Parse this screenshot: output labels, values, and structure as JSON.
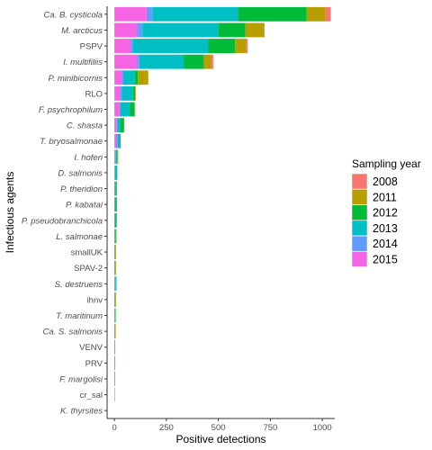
{
  "chart_data": {
    "type": "bar",
    "orientation": "horizontal",
    "stacked": true,
    "title": "",
    "xlabel": "Positive detections",
    "ylabel": "Infectious agents",
    "xlim": [
      -35,
      1060
    ],
    "xticks": [
      0,
      250,
      500,
      750,
      1000
    ],
    "xtick_labels": [
      "0",
      "250",
      "500",
      "750",
      "1000"
    ],
    "grid": false,
    "legend": {
      "title": "Sampling year",
      "position": "right",
      "entries": [
        "2008",
        "2011",
        "2012",
        "2013",
        "2014",
        "2015"
      ]
    },
    "colors": {
      "2008": "#F8766D",
      "2011": "#B79F00",
      "2012": "#00BA38",
      "2013": "#00BFC4",
      "2014": "#619CFF",
      "2015": "#F564E3",
      "axis": "#333333",
      "tick_text": "#4d4d4d"
    },
    "stack_order": [
      "2015",
      "2014",
      "2013",
      "2012",
      "2011",
      "2008"
    ],
    "categories": [
      {
        "name": "Ca. B. cysticola",
        "italic": true
      },
      {
        "name": "M. arcticus",
        "italic": true
      },
      {
        "name": "PSPV",
        "italic": false
      },
      {
        "name": "I. multifiliis",
        "italic": true
      },
      {
        "name": "P. minibicornis",
        "italic": true
      },
      {
        "name": "RLO",
        "italic": false
      },
      {
        "name": "F. psychrophilum",
        "italic": true
      },
      {
        "name": "C. shasta",
        "italic": true
      },
      {
        "name": "T. bryosalmonae",
        "italic": true
      },
      {
        "name": "I. hoferi",
        "italic": true
      },
      {
        "name": "D. salmonis",
        "italic": true
      },
      {
        "name": "P. theridion",
        "italic": true
      },
      {
        "name": "P. kabatai",
        "italic": true
      },
      {
        "name": "P. pseudobranchicola",
        "italic": true
      },
      {
        "name": "L. salmonae",
        "italic": true
      },
      {
        "name": "smallUK",
        "italic": false
      },
      {
        "name": "SPAV-2",
        "italic": false
      },
      {
        "name": "S. destruens",
        "italic": true
      },
      {
        "name": "ihnv",
        "italic": false
      },
      {
        "name": "T. maritinum",
        "italic": true
      },
      {
        "name": "Ca. S. salmonis",
        "italic": true
      },
      {
        "name": "VENV",
        "italic": false
      },
      {
        "name": "PRV",
        "italic": false
      },
      {
        "name": "F. margolisi",
        "italic": true
      },
      {
        "name": "cr_sal",
        "italic": false
      },
      {
        "name": "K. thyrsites",
        "italic": true
      }
    ],
    "series": [
      {
        "name": "2015",
        "values": [
          155,
          110,
          80,
          110,
          35,
          30,
          25,
          12,
          8,
          4,
          2,
          1,
          1,
          1,
          1,
          1,
          1,
          1,
          1,
          1,
          0,
          0,
          0,
          0,
          0,
          0
        ]
      },
      {
        "name": "2014",
        "values": [
          30,
          25,
          10,
          10,
          8,
          5,
          5,
          3,
          8,
          3,
          2,
          1,
          1,
          1,
          1,
          1,
          1,
          4,
          1,
          1,
          1,
          2,
          2,
          1,
          0,
          0
        ]
      },
      {
        "name": "2013",
        "values": [
          410,
          365,
          360,
          215,
          55,
          55,
          45,
          15,
          12,
          6,
          5,
          5,
          4,
          4,
          3,
          2,
          2,
          3,
          2,
          2,
          2,
          2,
          2,
          1,
          1,
          0
        ]
      },
      {
        "name": "2012",
        "values": [
          330,
          130,
          130,
          95,
          15,
          10,
          20,
          15,
          2,
          3,
          5,
          4,
          5,
          4,
          3,
          1,
          1,
          1,
          1,
          2,
          1,
          0,
          0,
          0,
          0,
          0
        ]
      },
      {
        "name": "2011",
        "values": [
          90,
          90,
          55,
          35,
          50,
          3,
          5,
          3,
          0,
          2,
          0,
          1,
          1,
          1,
          1,
          1,
          1,
          0,
          1,
          0,
          1,
          0,
          0,
          0,
          0,
          0
        ]
      },
      {
        "name": "2008",
        "values": [
          25,
          2,
          5,
          10,
          0,
          0,
          0,
          0,
          0,
          0,
          0,
          0,
          0,
          0,
          0,
          0,
          0,
          0,
          0,
          0,
          0,
          0,
          0,
          0,
          0,
          0
        ]
      }
    ]
  }
}
